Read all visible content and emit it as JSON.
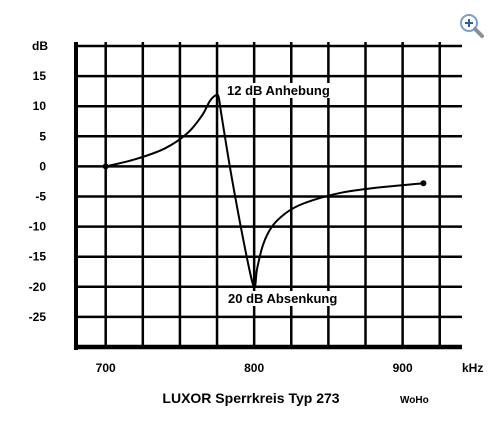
{
  "chart_data": {
    "type": "line",
    "title": "LUXOR  Sperrkreis  Typ 273",
    "signature": "WoHo",
    "xlabel": "kHz",
    "ylabel": "dB",
    "xlim": [
      680,
      940
    ],
    "ylim": [
      -30,
      20
    ],
    "x_ticks": [
      {
        "value": 700,
        "label": "700"
      },
      {
        "value": 800,
        "label": "800"
      },
      {
        "value": 900,
        "label": "900"
      }
    ],
    "y_ticks": [
      {
        "value": 15,
        "label": "15"
      },
      {
        "value": 10,
        "label": "10"
      },
      {
        "value": 5,
        "label": "5"
      },
      {
        "value": 0,
        "label": "0"
      },
      {
        "value": -5,
        "label": "-5"
      },
      {
        "value": -10,
        "label": "-10"
      },
      {
        "value": -15,
        "label": "-15"
      },
      {
        "value": -20,
        "label": "-20"
      },
      {
        "value": -25,
        "label": "-25"
      }
    ],
    "grid": true,
    "series": [
      {
        "x": [
          700,
          720,
          740,
          755,
          765,
          770,
          774,
          776,
          778,
          785,
          795,
          800,
          802,
          806,
          812,
          820,
          830,
          845,
          860,
          880,
          900,
          914
        ],
        "y": [
          0,
          1.2,
          3,
          5.5,
          8.5,
          10.8,
          11.8,
          11.6,
          8.5,
          -2,
          -15,
          -20,
          -17,
          -13,
          -10,
          -8,
          -6.5,
          -5.2,
          -4.3,
          -3.6,
          -3.1,
          -2.8
        ]
      }
    ],
    "markers": [
      {
        "x": 700,
        "y": 0
      },
      {
        "x": 914,
        "y": -2.8
      }
    ],
    "annotations": [
      {
        "text": "12 dB Anhebung",
        "x": 776,
        "y": 11.8
      },
      {
        "text": "20 dB Absenkung",
        "x": 800,
        "y": -20
      }
    ]
  },
  "toolbar": {
    "zoom_icon": "magnifier-plus-icon"
  }
}
